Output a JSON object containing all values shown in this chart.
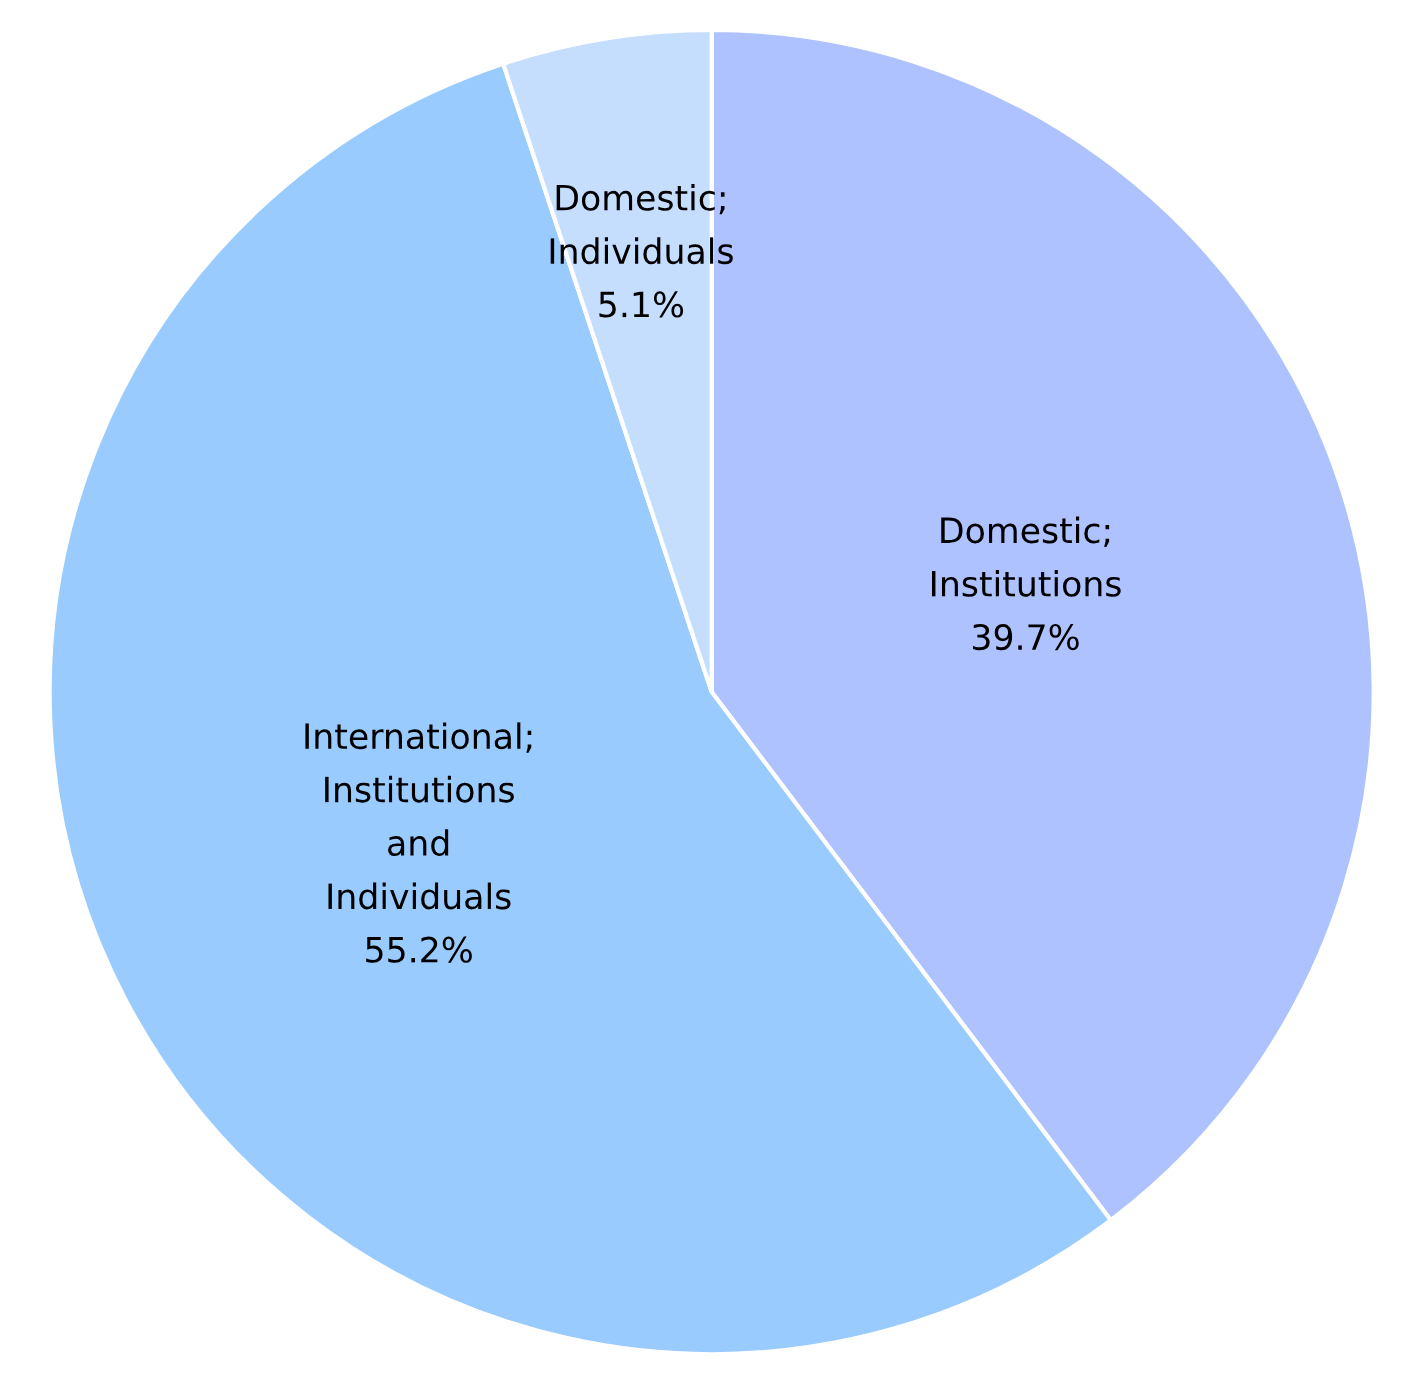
{
  "chart_data": {
    "type": "pie",
    "categories": [
      "Domestic;\nInstitutions",
      "International;\nInstitutions\nand\nIndividuals",
      "Domestic;\nIndividuals"
    ],
    "values": [
      39.7,
      55.2,
      5.1
    ],
    "value_labels": [
      "39.7%",
      "55.2%",
      "5.1%"
    ],
    "colors": [
      "#adc2fe",
      "#99cbfe",
      "#c5defe"
    ]
  }
}
